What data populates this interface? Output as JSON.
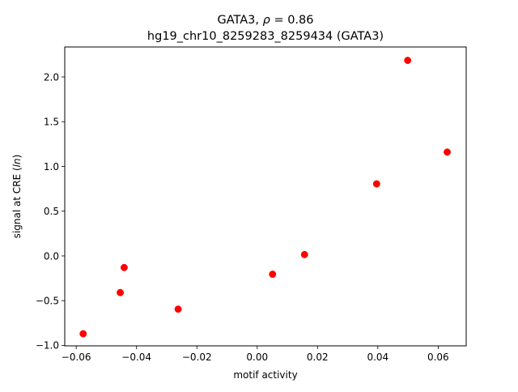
{
  "chart_data": {
    "type": "scatter",
    "title": "GATA3, ρ = 0.86",
    "title_parts": {
      "prefix": "GATA3, ",
      "symbol": "ρ",
      "suffix": " = 0.86"
    },
    "subtitle": "hg19_chr10_8259283_8259434 (GATA3)",
    "xlabel": "motif activity",
    "ylabel": "signal at CRE (ln)",
    "ylabel_parts": {
      "prefix": "signal at CRE (",
      "italic": "ln",
      "suffix": ")"
    },
    "xlim": [
      -0.0638,
      0.0693
    ],
    "ylim": [
      -1.005,
      2.335
    ],
    "x_ticks": [
      {
        "value": -0.06,
        "label": "−0.06"
      },
      {
        "value": -0.04,
        "label": "−0.04"
      },
      {
        "value": -0.02,
        "label": "−0.02"
      },
      {
        "value": 0.0,
        "label": "0.00"
      },
      {
        "value": 0.02,
        "label": "0.02"
      },
      {
        "value": 0.04,
        "label": "0.04"
      },
      {
        "value": 0.06,
        "label": "0.06"
      }
    ],
    "y_ticks": [
      {
        "value": -1.0,
        "label": "−1.0"
      },
      {
        "value": -0.5,
        "label": "−0.5"
      },
      {
        "value": 0.0,
        "label": "0.0"
      },
      {
        "value": 0.5,
        "label": "0.5"
      },
      {
        "value": 1.0,
        "label": "1.0"
      },
      {
        "value": 1.5,
        "label": "1.5"
      },
      {
        "value": 2.0,
        "label": "2.0"
      }
    ],
    "grid": false,
    "legend": "none",
    "marker_color": "#ff0000",
    "points": [
      {
        "x": -0.0577,
        "y": -0.87
      },
      {
        "x": -0.0454,
        "y": -0.41
      },
      {
        "x": -0.0441,
        "y": -0.13
      },
      {
        "x": -0.0262,
        "y": -0.595
      },
      {
        "x": 0.0051,
        "y": -0.205
      },
      {
        "x": 0.0157,
        "y": 0.015
      },
      {
        "x": 0.0396,
        "y": 0.805
      },
      {
        "x": 0.0499,
        "y": 2.185
      },
      {
        "x": 0.063,
        "y": 1.16
      }
    ]
  }
}
